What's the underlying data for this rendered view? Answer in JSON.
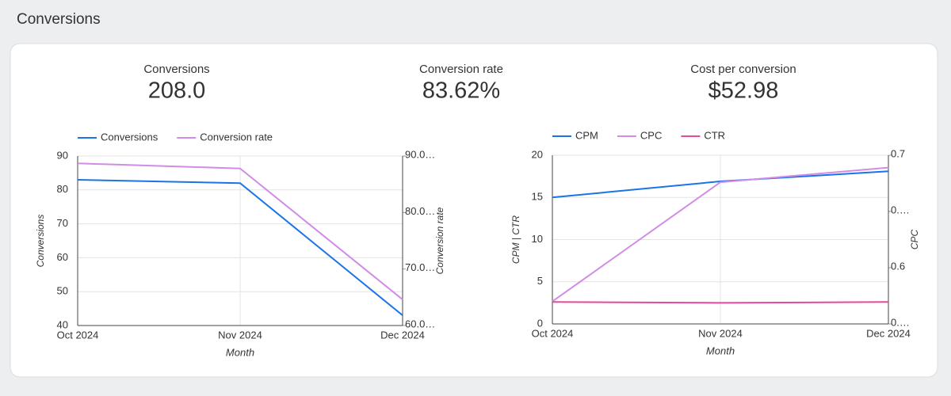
{
  "header": {
    "title": "Conversions"
  },
  "scorecards": [
    {
      "label": "Conversions",
      "value": "208.0"
    },
    {
      "label": "Conversion rate",
      "value": "83.62%"
    },
    {
      "label": "Cost per conversion",
      "value": "$52.98"
    }
  ],
  "chart_data": [
    {
      "type": "line",
      "categories": [
        "Oct 2024",
        "Nov 2024",
        "Dec 2024"
      ],
      "xlabel": "Month",
      "ylabel": "Conversions",
      "y2label": "Conversion rate",
      "ylim": [
        40,
        90
      ],
      "yticks": [
        40,
        50,
        60,
        70,
        80,
        90
      ],
      "y2lim": [
        60,
        90
      ],
      "y2ticks": [
        {
          "value": 60,
          "label": "60.0…"
        },
        {
          "value": 70,
          "label": "70.0…"
        },
        {
          "value": 80,
          "label": "80.0…"
        },
        {
          "value": 90,
          "label": "90.0…"
        }
      ],
      "grid": true,
      "legend": "top-left",
      "series": [
        {
          "name": "Conversions",
          "color": "#1a73e8",
          "values": [
            83,
            82,
            43
          ]
        },
        {
          "name": "Conversion rate",
          "color": "#d18de6",
          "axis": "y2",
          "values": [
            88.7,
            87.8,
            64.6
          ]
        }
      ]
    },
    {
      "type": "line",
      "categories": [
        "Oct 2024",
        "Nov 2024",
        "Dec 2024"
      ],
      "xlabel": "Month",
      "ylabel": "CPM | CTR",
      "y2label": "CPC",
      "ylim": [
        0,
        20
      ],
      "yticks": [
        0,
        5,
        10,
        15,
        20
      ],
      "y2lim": [
        0.55,
        0.7
      ],
      "y2ticks": [
        {
          "value": 0.55,
          "label": "0.…"
        },
        0.6,
        {
          "value": 0.65,
          "label": "0.…"
        },
        0.7
      ],
      "grid": true,
      "legend": "top-left",
      "series": [
        {
          "name": "CPM",
          "color": "#1a73e8",
          "values": [
            15.0,
            16.9,
            18.1
          ]
        },
        {
          "name": "CPC",
          "color": "#d18de6",
          "axis": "y2",
          "values": [
            0.57,
            0.676,
            0.689
          ]
        },
        {
          "name": "CTR",
          "color": "#e8489a",
          "values": [
            2.6,
            2.5,
            2.6
          ]
        }
      ]
    }
  ]
}
